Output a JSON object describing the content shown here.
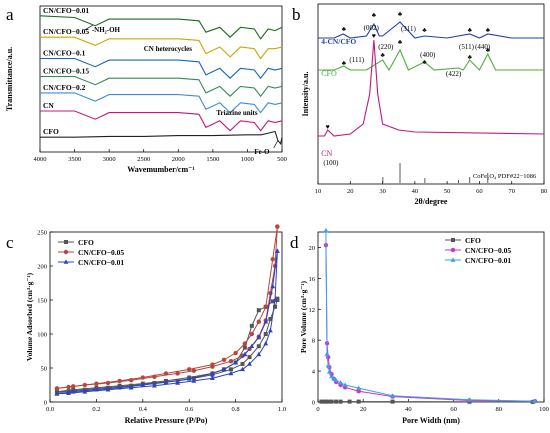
{
  "chart_data": [
    {
      "panel": "a",
      "type": "line",
      "title": "",
      "xlabel": "Wavemumber/cm⁻¹",
      "ylabel": "Transmittance/a.u.",
      "x_ticks": [
        4000,
        3500,
        3000,
        2500,
        2000,
        1500,
        1000,
        500
      ],
      "xlim": [
        4000,
        500
      ],
      "series": [
        {
          "name": "CN/CFO−0.01",
          "color": "#1a6b1a",
          "x": [
            4000,
            3500,
            3200,
            3000,
            2500,
            2000,
            1700,
            1600,
            1400,
            1250,
            1100,
            900,
            810,
            700,
            600,
            500
          ],
          "y": [
            8.6,
            8.5,
            8.0,
            8.4,
            8.4,
            8.4,
            8.3,
            7.6,
            7.9,
            7.3,
            7.9,
            7.8,
            7.2,
            7.8,
            7.7,
            7.9
          ]
        },
        {
          "name": "CN/CFO−0.05",
          "color": "#c9a800",
          "x": [
            4000,
            3500,
            3200,
            3000,
            2500,
            2000,
            1700,
            1600,
            1400,
            1250,
            1100,
            900,
            810,
            700,
            600,
            500
          ],
          "y": [
            7.3,
            7.3,
            6.8,
            7.2,
            7.2,
            7.2,
            7.1,
            6.3,
            6.7,
            6.1,
            6.7,
            6.6,
            6.0,
            6.6,
            6.6,
            6.7
          ]
        },
        {
          "name": "CN/CFO−0.1",
          "color": "#1565c0",
          "x": [
            4000,
            3500,
            3200,
            3000,
            2500,
            2000,
            1700,
            1600,
            1400,
            1250,
            1100,
            900,
            810,
            700,
            600,
            500
          ],
          "y": [
            6.0,
            6.0,
            5.5,
            5.9,
            5.9,
            5.9,
            5.8,
            5.0,
            5.4,
            4.8,
            5.4,
            5.3,
            4.8,
            5.4,
            5.3,
            5.4
          ]
        },
        {
          "name": "CN/CFO−0.15",
          "color": "#2e8b57",
          "x": [
            4000,
            3500,
            3200,
            3000,
            2500,
            2000,
            1700,
            1600,
            1400,
            1250,
            1100,
            900,
            810,
            700,
            600,
            500
          ],
          "y": [
            4.9,
            4.9,
            4.4,
            4.8,
            4.8,
            4.8,
            4.7,
            3.9,
            4.3,
            3.7,
            4.3,
            4.2,
            3.7,
            4.3,
            4.2,
            4.3
          ]
        },
        {
          "name": "CN/CFO−0.2",
          "color": "#3a8fd8",
          "x": [
            4000,
            3500,
            3200,
            3000,
            2500,
            2000,
            1700,
            1600,
            1400,
            1250,
            1100,
            900,
            810,
            700,
            600,
            500
          ],
          "y": [
            3.9,
            3.9,
            3.4,
            3.8,
            3.8,
            3.8,
            3.7,
            2.9,
            3.3,
            2.7,
            3.3,
            3.2,
            2.7,
            3.3,
            3.2,
            3.3
          ]
        },
        {
          "name": "CN",
          "color": "#c2187a",
          "x": [
            4000,
            3500,
            3200,
            3000,
            2500,
            2000,
            1700,
            1600,
            1400,
            1250,
            1100,
            900,
            810,
            700,
            600,
            500
          ],
          "y": [
            2.8,
            2.8,
            2.3,
            2.7,
            2.7,
            2.7,
            2.6,
            1.8,
            2.2,
            1.6,
            2.2,
            2.1,
            1.6,
            2.2,
            2.1,
            2.2
          ]
        },
        {
          "name": "CFO",
          "color": "#222222",
          "x": [
            4000,
            3500,
            3000,
            2500,
            2000,
            1500,
            1000,
            800,
            700,
            600,
            560,
            520,
            500
          ],
          "y": [
            1.2,
            1.2,
            1.25,
            1.25,
            1.3,
            1.3,
            1.35,
            1.35,
            1.45,
            1.55,
            1.0,
            0.8,
            1.2
          ]
        }
      ],
      "annotations": [
        "-NH₂-OH",
        "CN heterocycles",
        "Triazine units",
        "Fe-O"
      ]
    },
    {
      "panel": "b",
      "type": "line",
      "xlabel": "2θ/degree",
      "ylabel": "Intensity/a.u.",
      "xlim": [
        10,
        80
      ],
      "x_ticks": [
        10,
        20,
        30,
        40,
        50,
        60,
        70,
        80
      ],
      "series": [
        {
          "name": "4-CN/CFO",
          "color": "#1f3fb5",
          "x": [
            10,
            15,
            17.8,
            20,
            25,
            27.3,
            29,
            30,
            35.4,
            40,
            43,
            50,
            57,
            60,
            62.6,
            70,
            80
          ],
          "y": [
            73,
            73,
            75,
            73,
            74,
            80,
            74,
            74,
            81,
            73,
            74,
            73,
            75,
            73,
            75,
            73,
            73
          ]
        },
        {
          "name": "CFO",
          "color": "#4cae3a",
          "x": [
            10,
            15,
            18,
            20,
            25,
            30,
            32,
            35.4,
            38,
            43,
            46,
            53.5,
            55,
            57,
            60,
            62.6,
            65,
            70,
            80
          ],
          "y": [
            57,
            57,
            59,
            57,
            57,
            62,
            57,
            67,
            57,
            61,
            57,
            58,
            57,
            62,
            57,
            65,
            57,
            57,
            57
          ]
        },
        {
          "name": "CN",
          "color": "#c2187a",
          "x": [
            10,
            12,
            13,
            15,
            20,
            24,
            26,
            27.3,
            28.5,
            30,
            35,
            40,
            80
          ],
          "y": [
            24,
            24,
            27,
            24,
            25,
            30,
            45,
            72,
            45,
            30,
            27,
            26,
            25
          ]
        }
      ],
      "peak_labels": [
        "(111)",
        "(220)",
        "(311)",
        "(400)",
        "(422)",
        "(511)",
        "(440)",
        "(002)",
        "(100)"
      ],
      "reference": {
        "label": "CoFe₂O₄ PDF#22−1086",
        "positions": [
          30.1,
          35.4,
          43.1,
          53.5,
          57.0,
          62.6
        ],
        "heights": [
          3,
          10,
          2.5,
          1.5,
          3,
          5
        ]
      },
      "annotations": [
        "♣",
        "♥"
      ]
    },
    {
      "panel": "c",
      "type": "line",
      "xlabel": "Relative Pressure (P/Po)",
      "ylabel": "Volume Adsorbed (cm³·g⁻¹)",
      "xlim": [
        0.0,
        1.0
      ],
      "ylim": [
        0,
        250
      ],
      "x_ticks": [
        0.0,
        0.2,
        0.4,
        0.6,
        0.8,
        1.0
      ],
      "y_ticks": [
        0,
        50,
        100,
        150,
        200,
        250
      ],
      "legend": "top-left",
      "series": [
        {
          "name": "CFO",
          "color": "#555555",
          "marker": "square",
          "adsorption": {
            "x": [
              0.03,
              0.08,
              0.15,
              0.25,
              0.35,
              0.45,
              0.55,
              0.62,
              0.7,
              0.78,
              0.83,
              0.86,
              0.9,
              0.93,
              0.95,
              0.97,
              0.98
            ],
            "y": [
              14,
              16,
              18,
              21,
              24,
              28,
              31,
              35,
              40,
              48,
              56,
              66,
              82,
              100,
              122,
              140,
              150
            ]
          },
          "desorption": {
            "x": [
              0.98,
              0.96,
              0.93,
              0.9,
              0.87,
              0.84,
              0.8,
              0.75,
              0.7,
              0.6,
              0.5,
              0.4,
              0.3,
              0.2,
              0.1,
              0.03
            ],
            "y": [
              152,
              148,
              140,
              135,
              112,
              80,
              58,
              48,
              42,
              36,
              31,
              27,
              24,
              21,
              18,
              15
            ]
          }
        },
        {
          "name": "CN/CFO−0.05",
          "color": "#b8463c",
          "marker": "circle",
          "adsorption": {
            "x": [
              0.03,
              0.08,
              0.15,
              0.25,
              0.35,
              0.45,
              0.55,
              0.62,
              0.7,
              0.78,
              0.83,
              0.86,
              0.9,
              0.93,
              0.95,
              0.97,
              0.98
            ],
            "y": [
              20,
              22,
              25,
              28,
              32,
              37,
              42,
              46,
              52,
              60,
              68,
              78,
              96,
              120,
              160,
              200,
              258
            ]
          },
          "desorption": {
            "x": [
              0.98,
              0.96,
              0.93,
              0.9,
              0.87,
              0.84,
              0.8,
              0.75,
              0.7,
              0.6,
              0.5,
              0.4,
              0.3,
              0.2,
              0.1,
              0.03
            ],
            "y": [
              258,
              210,
              140,
              118,
              100,
              86,
              72,
              62,
              55,
              48,
              42,
              36,
              31,
              27,
              23,
              20
            ]
          }
        },
        {
          "name": "CN/CFO−0.01",
          "color": "#2a43c8",
          "marker": "triangle",
          "adsorption": {
            "x": [
              0.03,
              0.08,
              0.15,
              0.25,
              0.35,
              0.45,
              0.55,
              0.62,
              0.7,
              0.78,
              0.83,
              0.86,
              0.9,
              0.93,
              0.95,
              0.97,
              0.98
            ],
            "y": [
              12,
              13,
              15,
              18,
              21,
              24,
              28,
              31,
              35,
              42,
              48,
              56,
              70,
              86,
              105,
              150,
              222
            ]
          },
          "desorption": {
            "x": [
              0.98,
              0.96,
              0.93,
              0.9,
              0.87,
              0.84,
              0.8,
              0.75,
              0.7,
              0.6,
              0.5,
              0.4,
              0.3,
              0.2,
              0.1,
              0.03
            ],
            "y": [
              222,
              170,
              118,
              95,
              82,
              70,
              58,
              48,
              42,
              34,
              29,
              25,
              21,
              18,
              15,
              12
            ]
          }
        }
      ]
    },
    {
      "panel": "d",
      "type": "line",
      "xlabel": "Pore Width (nm)",
      "ylabel": "Pore Volume (cm³·g⁻¹)",
      "xlim": [
        0,
        100
      ],
      "ylim": [
        0,
        22
      ],
      "x_ticks": [
        0,
        20,
        40,
        60,
        80,
        100
      ],
      "y_ticks": [
        0,
        4,
        8,
        12,
        16,
        20
      ],
      "legend": "top-right",
      "series": [
        {
          "name": "CFO",
          "color": "#555555",
          "marker": "square",
          "x": [
            1.5,
            2.5,
            3.5,
            4.5,
            6,
            8,
            10,
            14,
            18,
            33,
            67,
            95
          ],
          "y": [
            0.05,
            0.05,
            0.05,
            0.05,
            0.05,
            0.05,
            0.05,
            0.05,
            0.05,
            0.05,
            0.03,
            0.02
          ]
        },
        {
          "name": "CN/CFO−0.05",
          "color": "#cc33cc",
          "marker": "circle",
          "x": [
            3.5,
            4,
            4.5,
            5,
            6,
            7,
            8,
            10,
            12,
            18,
            33,
            67,
            96
          ],
          "y": [
            20.3,
            7.6,
            5.8,
            4.5,
            3.6,
            3.0,
            2.6,
            2.2,
            1.9,
            1.4,
            0.7,
            0.2,
            0.1
          ]
        },
        {
          "name": "CN/CFO−0.01",
          "color": "#3aa0e6",
          "marker": "triangle",
          "x": [
            3.5,
            4,
            4.5,
            5,
            6,
            7,
            8,
            10,
            12,
            18,
            33,
            67,
            96
          ],
          "y": [
            22.2,
            6.2,
            4.7,
            3.9,
            3.3,
            3.0,
            2.8,
            2.5,
            2.2,
            1.8,
            0.8,
            0.3,
            0.1
          ]
        }
      ]
    }
  ]
}
